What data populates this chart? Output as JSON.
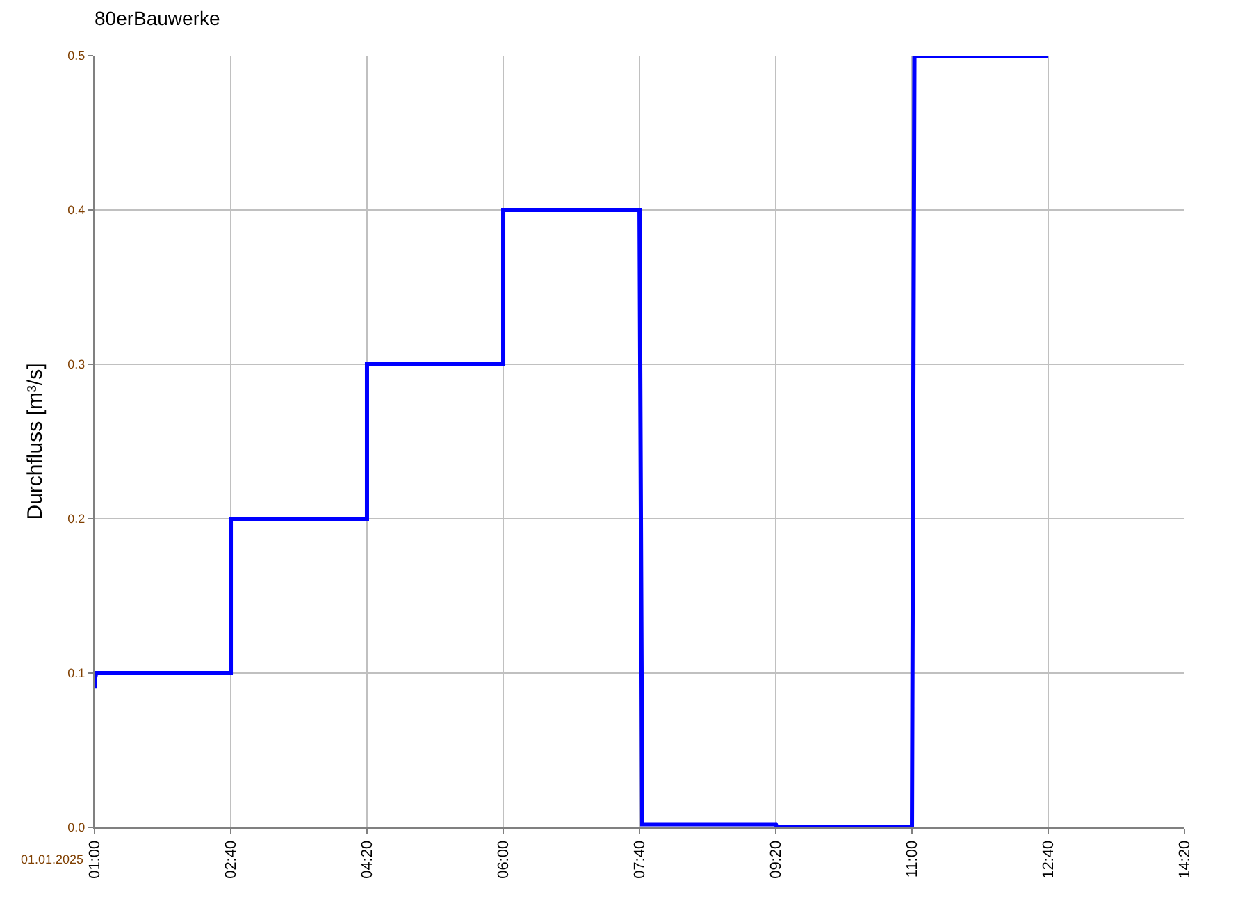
{
  "chart_data": {
    "type": "line",
    "title": "80erBauwerke",
    "ylabel": "Durchfluss [m³/s]",
    "x": [
      1.0,
      1.0,
      1.02,
      2.667,
      2.667,
      4.333,
      4.333,
      6.0,
      6.0,
      7.667,
      7.7,
      9.333,
      9.35,
      11.0,
      11.03,
      12.667
    ],
    "series": [
      {
        "color": "#0000ff",
        "values": [
          0.09,
          0.095,
          0.1,
          0.1,
          0.2,
          0.2,
          0.3,
          0.3,
          0.4,
          0.4,
          0.002,
          0.002,
          0,
          0,
          0.5,
          0.5
        ]
      }
    ],
    "xlim": [
      1.0,
      14.333
    ],
    "xticks": [
      {
        "value": 1.0,
        "label": "01:00"
      },
      {
        "value": 2.667,
        "label": "02:40"
      },
      {
        "value": 4.333,
        "label": "04:20"
      },
      {
        "value": 6.0,
        "label": "06:00"
      },
      {
        "value": 7.667,
        "label": "07:40"
      },
      {
        "value": 9.333,
        "label": "09:20"
      },
      {
        "value": 11.0,
        "label": "11:00"
      },
      {
        "value": 12.667,
        "label": "12:40"
      },
      {
        "value": 14.333,
        "label": "14:20"
      }
    ],
    "ylim": [
      0,
      0.5
    ],
    "yticks": [
      {
        "value": 0,
        "label": "0.0"
      },
      0.1,
      0.2,
      0.3,
      0.4,
      0.5
    ],
    "annotations": [
      "01.01.2025"
    ],
    "grid": true,
    "marker": "none",
    "line_style": "solid"
  }
}
